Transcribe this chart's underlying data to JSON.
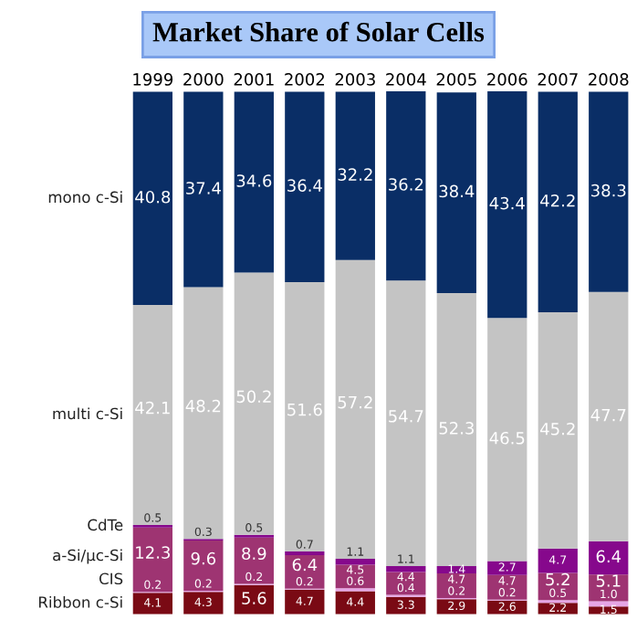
{
  "chart_data": {
    "type": "bar",
    "title": "Market Share of Solar Cells",
    "stacked": true,
    "data_labels": true,
    "legend": "left",
    "categories": [
      "1999",
      "2000",
      "2001",
      "2002",
      "2003",
      "2004",
      "2005",
      "2006",
      "2007",
      "2008"
    ],
    "series": [
      {
        "name": "Ribbon c-Si",
        "color": "#7a0a14",
        "values": [
          4.1,
          4.3,
          5.6,
          4.7,
          4.4,
          3.3,
          2.9,
          2.6,
          2.2,
          1.5
        ]
      },
      {
        "name": "CIS",
        "color": "#e6a6e6",
        "values": [
          0.2,
          0.2,
          0.2,
          0.2,
          0.6,
          0.4,
          0.2,
          0.2,
          0.5,
          1.0
        ],
        "value_labels": [
          "0.2",
          "0.2",
          "0.2",
          "0.2",
          "0.6",
          "0.4",
          "0.2",
          "0.2",
          "0.5",
          "1.0"
        ]
      },
      {
        "name": "a-Si/μc-Si",
        "color": "#9e3472",
        "values": [
          12.3,
          9.6,
          8.9,
          6.4,
          4.5,
          4.4,
          4.7,
          4.7,
          5.2,
          5.1
        ]
      },
      {
        "name": "CdTe",
        "color": "#86088c",
        "values": [
          0.5,
          0.3,
          0.5,
          0.7,
          1.1,
          1.1,
          1.4,
          2.7,
          4.7,
          6.4
        ]
      },
      {
        "name": "multi c-Si",
        "color": "#c4c4c4",
        "values": [
          42.1,
          48.2,
          50.2,
          51.6,
          57.2,
          54.7,
          52.3,
          46.5,
          45.2,
          47.7
        ]
      },
      {
        "name": "mono c-Si",
        "color": "#0a2e66",
        "values": [
          40.8,
          37.4,
          34.6,
          36.4,
          32.2,
          36.2,
          38.4,
          43.4,
          42.2,
          38.3
        ]
      }
    ]
  }
}
